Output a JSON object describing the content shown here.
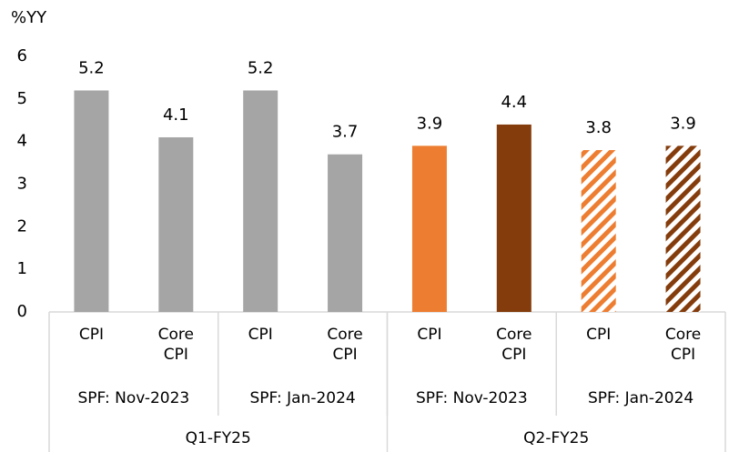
{
  "chart_data": {
    "type": "bar",
    "y_label": "%YY",
    "categories": [
      "CPI",
      "Core CPI",
      "CPI",
      "Core CPI",
      "CPI",
      "Core CPI",
      "CPI",
      "Core CPI"
    ],
    "values": [
      5.2,
      4.1,
      5.2,
      3.7,
      3.9,
      4.4,
      3.8,
      3.9
    ],
    "colors": [
      "#a5a5a5",
      "#a5a5a5",
      "#a5a5a5",
      "#a5a5a5",
      "#ed7d31",
      "#843c0c",
      "#ed7d31",
      "#843c0c"
    ],
    "hatched": [
      false,
      false,
      false,
      false,
      false,
      false,
      true,
      true
    ],
    "group_labels": [
      "SPF: Nov-2023",
      "SPF: Jan-2024",
      "SPF: Nov-2023",
      "SPF: Jan-2024"
    ],
    "period_labels": [
      "Q1-FY25",
      "Q2-FY25"
    ],
    "ylim": [
      0,
      6
    ],
    "yticks": [
      0,
      1,
      2,
      3,
      4,
      5,
      6
    ],
    "data_labels": true
  }
}
